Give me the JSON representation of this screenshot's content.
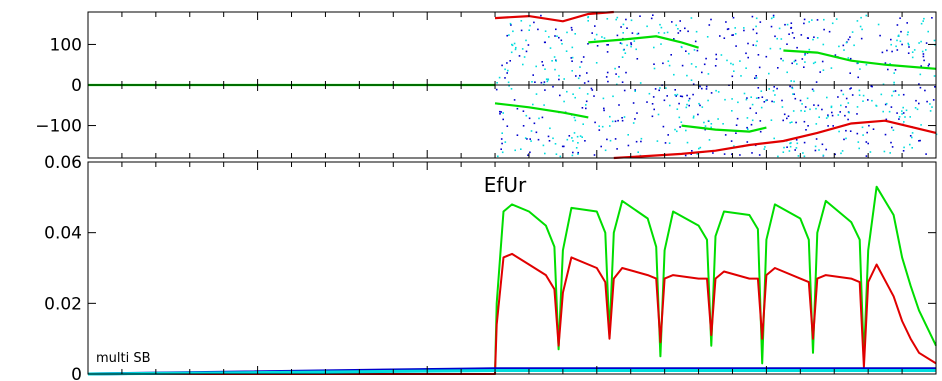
{
  "chart_data": [
    {
      "type": "scatter",
      "panel": "phase",
      "title": "",
      "xlabel": "",
      "ylabel": "",
      "ylim": [
        -180,
        180
      ],
      "x_range": [
        0,
        100
      ],
      "y_ticks": [
        {
          "value": 100,
          "label": "100"
        },
        {
          "value": 0,
          "label": "0"
        },
        {
          "value": -100,
          "label": "−100"
        }
      ],
      "grid": false,
      "colors": {
        "red": "#e00000",
        "green": "#00dd00",
        "blue": "#0000cc",
        "cyan": "#00dddd"
      },
      "series": [
        {
          "color": "red",
          "values": [
            [
              48,
              165
            ],
            [
              52,
              170
            ],
            [
              56,
              157
            ],
            [
              59,
              175
            ],
            [
              62,
              190
            ]
          ]
        },
        {
          "color": "red",
          "values": [
            [
              62,
              -190
            ],
            [
              66,
              -175
            ],
            [
              70,
              -170
            ],
            [
              74,
              -162
            ],
            [
              78,
              -148
            ],
            [
              82,
              -138
            ],
            [
              86,
              -118
            ],
            [
              90,
              -95
            ],
            [
              94,
              -88
            ],
            [
              100,
              -118
            ]
          ]
        },
        {
          "color": "green",
          "values": [
            [
              48,
              -45
            ],
            [
              52,
              -55
            ],
            [
              56,
              -68
            ],
            [
              59,
              -80
            ]
          ]
        },
        {
          "color": "green",
          "values": [
            [
              59,
              105
            ],
            [
              63,
              112
            ],
            [
              67,
              120
            ],
            [
              70,
              105
            ],
            [
              72,
              92
            ]
          ]
        },
        {
          "color": "green",
          "values": [
            [
              70,
              -100
            ],
            [
              74,
              -110
            ],
            [
              78,
              -115
            ],
            [
              80,
              -105
            ]
          ]
        },
        {
          "color": "green",
          "values": [
            [
              82,
              85
            ],
            [
              86,
              80
            ],
            [
              90,
              60
            ],
            [
              94,
              50
            ],
            [
              100,
              40
            ]
          ]
        },
        {
          "color": "green",
          "values": [
            [
              0,
              0
            ],
            [
              48,
              0
            ]
          ]
        }
      ],
      "scatter_clouds": [
        {
          "color": "blue",
          "x_range": [
            48,
            100
          ],
          "y_range": [
            -180,
            180
          ]
        },
        {
          "color": "cyan",
          "x_range": [
            48,
            100
          ],
          "y_range": [
            -180,
            180
          ]
        }
      ]
    },
    {
      "type": "line",
      "panel": "amplitude",
      "title": "EfUr",
      "xlabel": "",
      "ylabel": "",
      "ylim": [
        0,
        0.06
      ],
      "x_range": [
        0,
        100
      ],
      "y_ticks": [
        {
          "value": 0.06,
          "label": "0.06"
        },
        {
          "value": 0.04,
          "label": "0.04"
        },
        {
          "value": 0.02,
          "label": "0.02"
        },
        {
          "value": 0,
          "label": "0"
        }
      ],
      "annotation": "multi SB",
      "grid": false,
      "colors": {
        "red": "#e00000",
        "green": "#00dd00",
        "blue": "#0000cc",
        "cyan": "#00dddd"
      },
      "series": [
        {
          "color": "green",
          "x": [
            0,
            48,
            48.2,
            49,
            50,
            52,
            54,
            55,
            55.5,
            56,
            57,
            60,
            61,
            61.5,
            62,
            63,
            66,
            67,
            67.5,
            68,
            69,
            72,
            73,
            73.5,
            74,
            75,
            78,
            79,
            79.5,
            80,
            81,
            84,
            85,
            85.5,
            86,
            87,
            90,
            91,
            91.5,
            92,
            93,
            95,
            96,
            97,
            98,
            100
          ],
          "values": [
            0,
            0,
            0.02,
            0.046,
            0.048,
            0.046,
            0.042,
            0.036,
            0.007,
            0.035,
            0.047,
            0.046,
            0.04,
            0.011,
            0.04,
            0.049,
            0.044,
            0.036,
            0.005,
            0.035,
            0.046,
            0.042,
            0.038,
            0.008,
            0.039,
            0.046,
            0.045,
            0.041,
            0.003,
            0.038,
            0.048,
            0.044,
            0.038,
            0.006,
            0.04,
            0.049,
            0.043,
            0.038,
            0.004,
            0.035,
            0.053,
            0.045,
            0.033,
            0.025,
            0.018,
            0.008
          ]
        },
        {
          "color": "red",
          "x": [
            0,
            48,
            48.2,
            49,
            50,
            52,
            54,
            55,
            55.5,
            56,
            57,
            60,
            61,
            61.5,
            62,
            63,
            66,
            67,
            67.5,
            68,
            69,
            72,
            73,
            73.5,
            74,
            75,
            78,
            79,
            79.5,
            80,
            81,
            84,
            85,
            85.5,
            86,
            87,
            90,
            91,
            91.5,
            92,
            93,
            95,
            96,
            97,
            98,
            100
          ],
          "values": [
            0,
            0,
            0.014,
            0.033,
            0.034,
            0.031,
            0.028,
            0.024,
            0.008,
            0.023,
            0.033,
            0.03,
            0.026,
            0.01,
            0.027,
            0.03,
            0.028,
            0.027,
            0.009,
            0.027,
            0.028,
            0.027,
            0.027,
            0.011,
            0.027,
            0.029,
            0.027,
            0.027,
            0.01,
            0.028,
            0.03,
            0.027,
            0.026,
            0.01,
            0.027,
            0.028,
            0.027,
            0.026,
            0.002,
            0.026,
            0.031,
            0.022,
            0.015,
            0.01,
            0.006,
            0.003
          ]
        },
        {
          "color": "blue",
          "x": [
            0,
            48,
            100
          ],
          "values": [
            0,
            0.0015,
            0.0015
          ]
        },
        {
          "color": "cyan",
          "x": [
            0,
            48,
            100
          ],
          "values": [
            0,
            0.001,
            0.001
          ]
        }
      ]
    }
  ]
}
